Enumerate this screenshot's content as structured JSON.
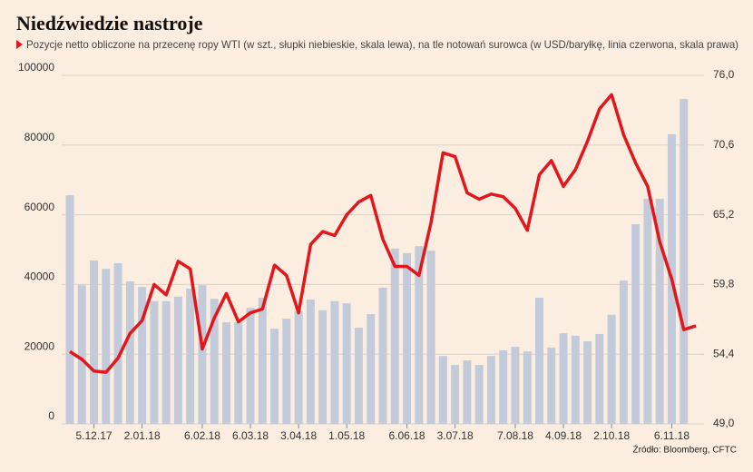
{
  "chart_data": {
    "type": "bar_line",
    "title": "Niedźwiedzie nastroje",
    "subtitle": "Pozycje netto obliczone na przecenę ropy WTI (w szt., słupki niebieskie, skala lewa), na tle notowań surowca (w USD/baryłkę, linia czerwona, skala prawa)",
    "source": "Źródło: Bloomberg, CFTC",
    "categories": [
      null,
      null,
      "5.12.17",
      null,
      null,
      null,
      "2.01.18",
      null,
      null,
      null,
      null,
      "6.02.18",
      null,
      null,
      null,
      "6.03.18",
      null,
      null,
      null,
      "3.04.18",
      null,
      null,
      null,
      "1.05.18",
      null,
      null,
      null,
      null,
      "6.06.18",
      null,
      null,
      null,
      "3.07.18",
      null,
      null,
      null,
      null,
      "7.08.18",
      null,
      null,
      null,
      "4.09.18",
      null,
      null,
      null,
      "2.10.18",
      null,
      null,
      null,
      null,
      "6.11.18",
      null,
      null
    ],
    "series": [
      {
        "type": "bar",
        "color": "#c3cbdb",
        "values": [
          65600,
          39800,
          46900,
          44500,
          46100,
          40900,
          39300,
          35200,
          35200,
          36500,
          38800,
          39800,
          35900,
          29200,
          29200,
          33300,
          36200,
          27300,
          30200,
          32300,
          35700,
          32600,
          35200,
          34600,
          27600,
          31500,
          39100,
          50300,
          49000,
          51000,
          49700,
          19500,
          16900,
          18200,
          16900,
          19500,
          21100,
          22100,
          20800,
          36200,
          21900,
          26000,
          25300,
          23700,
          25800,
          31300,
          41100,
          57300,
          64600,
          64600,
          83100,
          93200,
          null
        ]
      },
      {
        "type": "line",
        "axis": "y2",
        "color": "#e3161c",
        "values": [
          54.6,
          54.0,
          53.1,
          53.0,
          54.1,
          56.0,
          57.0,
          59.8,
          59.0,
          61.6,
          61.0,
          54.8,
          57.2,
          59.1,
          56.9,
          57.6,
          57.9,
          61.3,
          60.5,
          57.6,
          62.9,
          63.9,
          63.6,
          65.2,
          66.2,
          66.7,
          63.3,
          61.2,
          61.2,
          60.5,
          64.6,
          70.0,
          69.7,
          66.9,
          66.4,
          66.8,
          66.6,
          65.7,
          64.0,
          68.3,
          69.4,
          67.4,
          68.7,
          70.9,
          73.4,
          74.5,
          71.4,
          69.2,
          67.4,
          63.1,
          60.2,
          56.3,
          56.6
        ]
      }
    ],
    "ylim": [
      0,
      100000
    ],
    "yticks": [
      0,
      20000,
      40000,
      60000,
      80000,
      100000
    ],
    "y2lim": [
      49,
      76
    ],
    "y2ticks": [
      {
        "value": 49,
        "label": "49,0"
      },
      {
        "value": 54.4,
        "label": "54,4"
      },
      {
        "value": 59.8,
        "label": "59,8"
      },
      {
        "value": 65.2,
        "label": "65,2"
      },
      {
        "value": 70.6,
        "label": "70,6"
      },
      {
        "value": 76,
        "label": "76,0"
      }
    ],
    "grid": true
  }
}
